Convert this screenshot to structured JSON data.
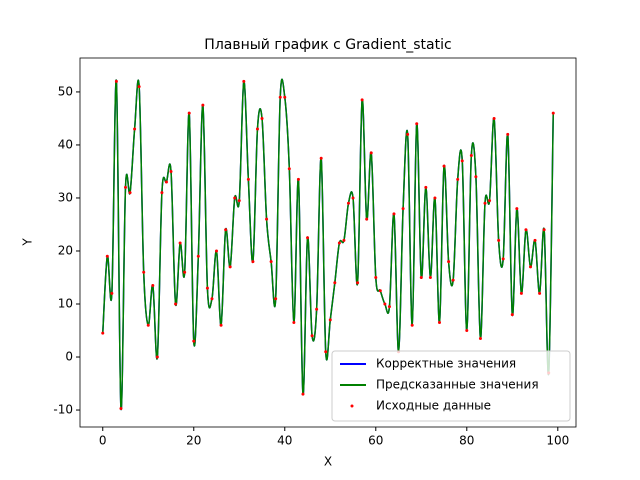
{
  "chart_data": {
    "type": "line",
    "title": "Плавный график с Gradient_static",
    "xlabel": "X",
    "ylabel": "Y",
    "x": [
      0,
      1,
      2,
      3,
      4,
      5,
      6,
      7,
      8,
      9,
      10,
      11,
      12,
      13,
      14,
      15,
      16,
      17,
      18,
      19,
      20,
      21,
      22,
      23,
      24,
      25,
      26,
      27,
      28,
      29,
      30,
      31,
      32,
      33,
      34,
      35,
      36,
      37,
      38,
      39,
      40,
      41,
      42,
      43,
      44,
      45,
      46,
      47,
      48,
      49,
      50,
      51,
      52,
      53,
      54,
      55,
      56,
      57,
      58,
      59,
      60,
      61,
      62,
      63,
      64,
      65,
      66,
      67,
      68,
      69,
      70,
      71,
      72,
      73,
      74,
      75,
      76,
      77,
      78,
      79,
      80,
      81,
      82,
      83,
      84,
      85,
      86,
      87,
      88,
      89,
      90,
      91,
      92,
      93,
      94,
      95,
      96,
      97,
      98,
      99
    ],
    "series": [
      {
        "name": "Корректные значения",
        "color": "#0000ff",
        "mode": "lines",
        "values": [
          4.5,
          19,
          12,
          52,
          -9.7,
          32,
          31,
          43,
          51,
          16,
          6,
          13.5,
          0,
          31,
          33,
          35,
          10,
          21.5,
          16,
          46,
          3,
          19,
          47.5,
          13,
          11,
          20,
          6,
          24,
          17,
          30,
          29.5,
          52,
          33.5,
          18,
          43,
          45,
          26,
          18,
          11,
          49,
          49,
          35.5,
          6.5,
          33.5,
          -7,
          22.5,
          4,
          9,
          37.5,
          1,
          7,
          14,
          21.5,
          22,
          29,
          30,
          14,
          48.5,
          26,
          38.5,
          15,
          12.5,
          10,
          9.5,
          27,
          1,
          28,
          42,
          6,
          44,
          15,
          32,
          15,
          30,
          6.5,
          36,
          18,
          14.5,
          33.5,
          37,
          5,
          38,
          34,
          3.5,
          29,
          29.5,
          45,
          22,
          18.5,
          42,
          8,
          28,
          12,
          24,
          17,
          22,
          12,
          24,
          -3,
          46
        ]
      },
      {
        "name": "Предсказанные значения",
        "color": "#008000",
        "mode": "lines",
        "values": [
          4.5,
          19,
          12,
          52,
          -9.7,
          32,
          31,
          43,
          51,
          16,
          6,
          13.5,
          0,
          31,
          33,
          35,
          10,
          21.5,
          16,
          46,
          3,
          19,
          47.5,
          13,
          11,
          20,
          6,
          24,
          17,
          30,
          29.5,
          52,
          33.5,
          18,
          43,
          45,
          26,
          18,
          11,
          49,
          49,
          35.5,
          6.5,
          33.5,
          -7,
          22.5,
          4,
          9,
          37.5,
          1,
          7,
          14,
          21.5,
          22,
          29,
          30,
          14,
          48.5,
          26,
          38.5,
          15,
          12.5,
          10,
          9.5,
          27,
          1,
          28,
          42,
          6,
          44,
          15,
          32,
          15,
          30,
          6.5,
          36,
          18,
          14.5,
          33.5,
          37,
          5,
          38,
          34,
          3.5,
          29,
          29.5,
          45,
          22,
          18.5,
          42,
          8,
          28,
          12,
          24,
          17,
          22,
          12,
          24,
          -3,
          46
        ]
      },
      {
        "name": "Исходные данные",
        "color": "#ff0000",
        "mode": "markers",
        "values": [
          4.5,
          19,
          12,
          52,
          -9.7,
          32,
          31,
          43,
          51,
          16,
          6,
          13.5,
          0,
          31,
          33,
          35,
          10,
          21.5,
          16,
          46,
          3,
          19,
          47.5,
          13,
          11,
          20,
          6,
          24,
          17,
          30,
          29.5,
          52,
          33.5,
          18,
          43,
          45,
          26,
          18,
          11,
          49,
          49,
          35.5,
          6.5,
          33.5,
          -7,
          22.5,
          4,
          9,
          37.5,
          1,
          7,
          14,
          21.5,
          22,
          29,
          30,
          14,
          48.5,
          26,
          38.5,
          15,
          12.5,
          10,
          9.5,
          27,
          1,
          28,
          42,
          6,
          44,
          15,
          32,
          15,
          30,
          6.5,
          36,
          18,
          14.5,
          33.5,
          37,
          5,
          38,
          34,
          3.5,
          29,
          29.5,
          45,
          22,
          18.5,
          42,
          8,
          28,
          12,
          24,
          17,
          22,
          12,
          24,
          -3,
          46
        ]
      }
    ],
    "xlim": [
      -5,
      104
    ],
    "xticks": [
      0,
      20,
      40,
      60,
      80,
      100
    ],
    "ylim": [
      -13.2,
      56.4
    ],
    "yticks": [
      -10,
      0,
      10,
      20,
      30,
      40,
      50
    ],
    "legend": "lower right"
  }
}
